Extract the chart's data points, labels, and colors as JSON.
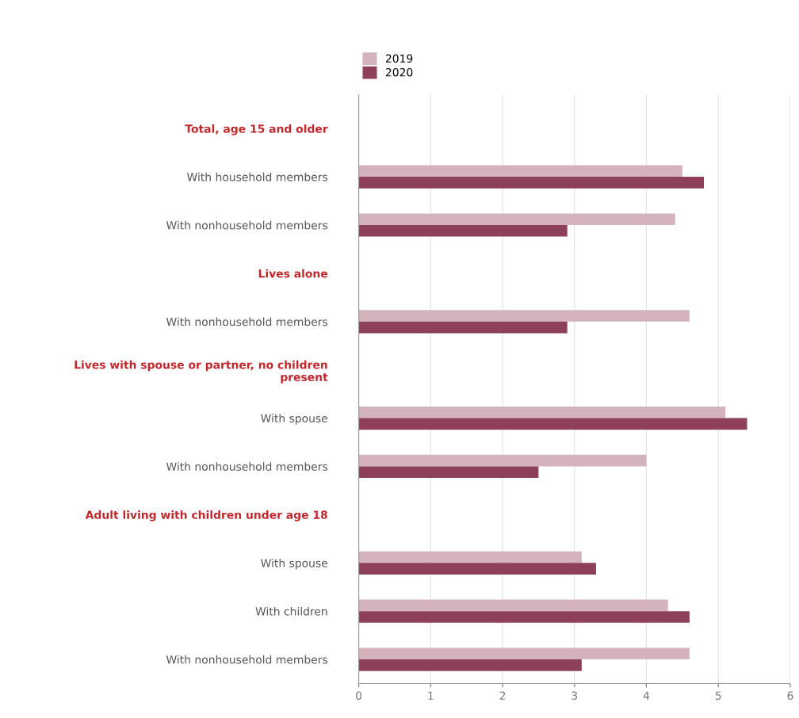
{
  "chart_data": {
    "type": "bar",
    "orientation": "horizontal",
    "categories": [
      "Total, age 15 and older",
      "With household members",
      "With nonhousehold members",
      "Lives alone",
      "With nonhousehold members",
      "Lives with spouse or partner, no children\npresent",
      "With spouse",
      "With nonhousehold members",
      "Adult living with children under age 18",
      "With spouse",
      "With children",
      "With nonhousehold members"
    ],
    "series": [
      {
        "name": "2019",
        "color": "#d4b3bd",
        "values": [
          null,
          4.5,
          4.4,
          null,
          4.6,
          null,
          5.1,
          4.0,
          null,
          3.1,
          4.3,
          4.6
        ]
      },
      {
        "name": "2020",
        "color": "#8e3f5a",
        "values": [
          null,
          4.8,
          2.9,
          null,
          2.9,
          null,
          5.4,
          2.5,
          null,
          3.3,
          4.6,
          3.1
        ]
      }
    ],
    "xlim": [
      0,
      6
    ],
    "xticks": [
      0,
      1,
      2,
      3,
      4,
      5,
      6
    ],
    "grid": "x",
    "legend": "top"
  }
}
